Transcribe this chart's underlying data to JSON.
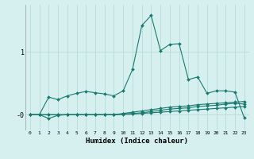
{
  "xlabel": "Humidex (Indice chaleur)",
  "background_color": "#d6f0f0",
  "grid_color": "#b8dada",
  "line_color": "#1a7a6e",
  "x": [
    0,
    1,
    2,
    3,
    4,
    5,
    6,
    7,
    8,
    9,
    10,
    11,
    12,
    13,
    14,
    15,
    16,
    17,
    18,
    19,
    20,
    21,
    22,
    23
  ],
  "line1": [
    0.0,
    0.0,
    0.28,
    0.24,
    0.3,
    0.34,
    0.37,
    0.35,
    0.33,
    0.3,
    0.38,
    0.72,
    1.42,
    1.58,
    1.02,
    1.12,
    1.13,
    0.56,
    0.6,
    0.34,
    0.38,
    0.38,
    0.36,
    -0.05
  ],
  "line2": [
    0.0,
    0.0,
    -0.06,
    -0.01,
    0.0,
    0.0,
    0.0,
    0.0,
    0.0,
    0.0,
    0.02,
    0.04,
    0.06,
    0.08,
    0.1,
    0.12,
    0.13,
    0.14,
    0.16,
    0.17,
    0.18,
    0.19,
    0.2,
    0.21
  ],
  "line3": [
    0.0,
    0.0,
    0.0,
    0.0,
    0.0,
    0.0,
    0.0,
    0.0,
    0.0,
    0.0,
    0.01,
    0.02,
    0.03,
    0.05,
    0.07,
    0.09,
    0.1,
    0.11,
    0.13,
    0.14,
    0.15,
    0.17,
    0.18,
    0.17
  ],
  "line4": [
    0.0,
    0.0,
    0.0,
    0.0,
    0.0,
    0.0,
    0.0,
    0.0,
    0.0,
    0.0,
    0.005,
    0.01,
    0.02,
    0.03,
    0.04,
    0.05,
    0.06,
    0.07,
    0.08,
    0.09,
    0.1,
    0.11,
    0.12,
    0.13
  ],
  "ytick_vals": [
    0,
    1
  ],
  "ytick_labels": [
    "-0",
    "1"
  ],
  "ylim": [
    -0.25,
    1.75
  ],
  "xlim": [
    -0.5,
    23.5
  ],
  "marker_size": 2.0,
  "linewidth": 0.8
}
